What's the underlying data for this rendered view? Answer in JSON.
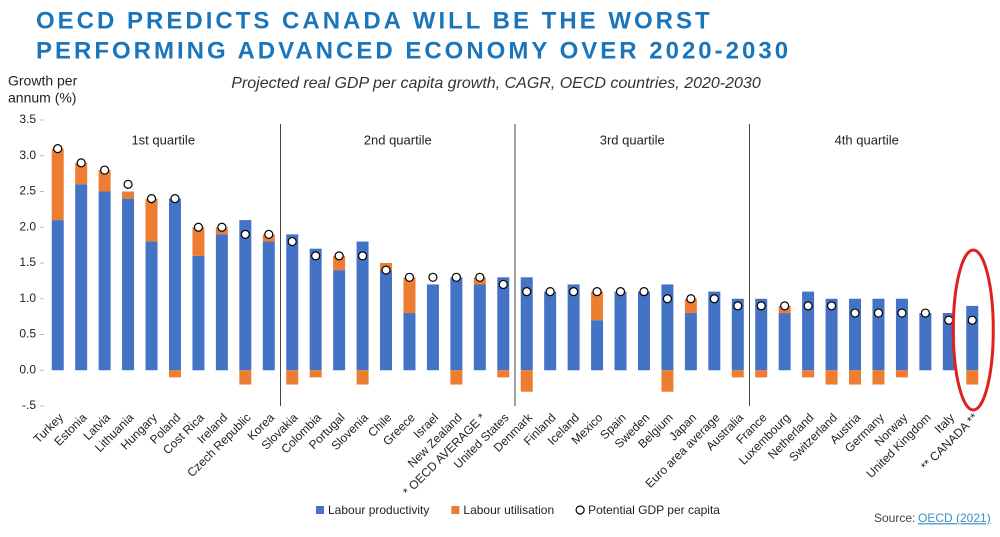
{
  "chart_data": {
    "type": "bar",
    "title": [
      "OECD PREDICTS CANADA WILL BE THE WORST",
      "PERFORMING ADVANCED ECONOMY OVER 2020-2030"
    ],
    "subtitle": "Projected real GDP per capita growth, CAGR, OECD countries, 2020-2030",
    "y_label": [
      "Growth per",
      "annum (%)"
    ],
    "quartiles": [
      "1st quartile",
      "2nd quartile",
      "3rd quartile",
      "4th quartile"
    ],
    "source": "Source:",
    "source_link": "OECD (2021)",
    "ylim": [
      -0.5,
      3.5
    ],
    "yticks": [
      {
        "value": 3.5,
        "label": "3.5"
      },
      {
        "value": 3.0,
        "label": "3.0"
      },
      2.5,
      {
        "value": 2.0,
        "label": "2.0"
      },
      1.5,
      {
        "value": 1.0,
        "label": "1.0"
      },
      0.5,
      {
        "value": 0.0,
        "label": "0.0"
      },
      {
        "value": -0.5,
        "label": "-.5"
      }
    ],
    "grid": false,
    "legend": "bottom",
    "categories": [
      "Turkey",
      "Estonia",
      "Latvia",
      "Lithuania",
      "Hungary",
      "Poland",
      "Cost Rica",
      "Ireland",
      "Czech Republic",
      "Korea",
      "Slovakia",
      "Colombia",
      "Portugal",
      "Slovenia",
      "Chile",
      "Greece",
      "Israel",
      "New Zealand",
      "* OECD AVERAGE *",
      "United States",
      "Denmark",
      "Finland",
      "Iceland",
      "Mexico",
      "Spain",
      "Sweden",
      "Belgium",
      "Japan",
      "Euro area average",
      "Australia",
      "France",
      "Luxembourg",
      "Netherland",
      "Switzerland",
      "Austria",
      "Germany",
      "Norway",
      "United Kingdom",
      "Italy",
      "** CANADA **"
    ],
    "series": [
      {
        "name": "Labour productivity",
        "type": "bar",
        "color": "#4472c4",
        "values": [
          2.1,
          2.6,
          2.5,
          2.4,
          1.8,
          2.4,
          1.6,
          1.9,
          2.1,
          1.8,
          1.9,
          1.7,
          1.4,
          1.8,
          1.4,
          0.8,
          1.2,
          1.3,
          1.2,
          1.3,
          1.3,
          1.1,
          1.2,
          0.7,
          1.1,
          1.1,
          1.2,
          0.8,
          1.1,
          1.0,
          1.0,
          0.8,
          1.1,
          1.0,
          1.0,
          1.0,
          1.0,
          0.8,
          0.8,
          0.9
        ]
      },
      {
        "name": "Labour utilisation",
        "type": "bar",
        "color": "#ed7d31",
        "values": [
          1.0,
          0.3,
          0.3,
          0.1,
          0.6,
          -0.1,
          0.4,
          0.1,
          -0.2,
          0.1,
          -0.2,
          -0.1,
          0.2,
          -0.2,
          0.1,
          0.5,
          0.0,
          -0.2,
          0.1,
          -0.1,
          -0.3,
          0.0,
          0.0,
          0.4,
          0.0,
          0.0,
          -0.3,
          0.2,
          0.0,
          -0.1,
          -0.1,
          0.1,
          -0.1,
          -0.2,
          -0.2,
          -0.2,
          -0.1,
          0.0,
          0.0,
          -0.2
        ]
      },
      {
        "name": "Potential GDP per capita",
        "type": "scatter",
        "color": "#ffffff",
        "values": [
          3.1,
          2.9,
          2.8,
          2.6,
          2.4,
          2.4,
          2.0,
          2.0,
          1.9,
          1.9,
          1.8,
          1.6,
          1.6,
          1.6,
          1.4,
          1.3,
          1.3,
          1.3,
          1.3,
          1.2,
          1.1,
          1.1,
          1.1,
          1.1,
          1.1,
          1.1,
          1.0,
          1.0,
          1.0,
          0.9,
          0.9,
          0.9,
          0.9,
          0.9,
          0.8,
          0.8,
          0.8,
          0.8,
          0.7,
          0.7
        ]
      }
    ],
    "highlight_color": "#e02020"
  }
}
